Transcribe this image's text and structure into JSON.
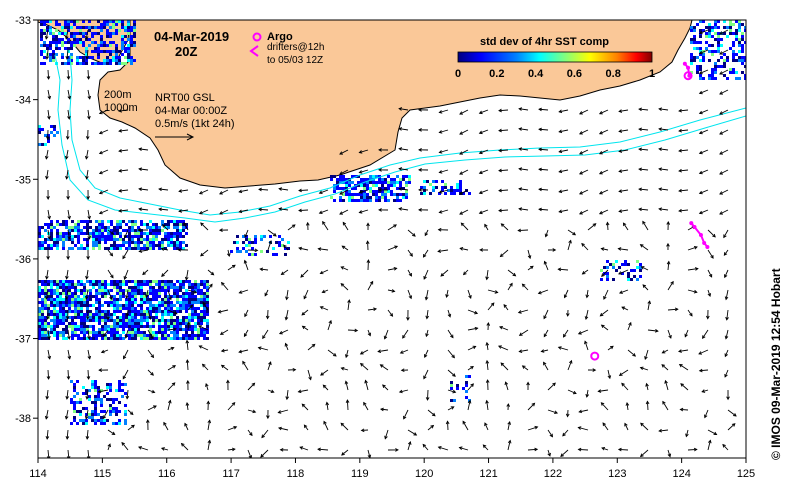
{
  "title": {
    "date": "04-Mar-2019",
    "time": "20Z"
  },
  "legend": {
    "argo_label": "Argo",
    "drifters_line1": "drifters@12h",
    "drifters_line2": "to 05/03 12Z",
    "colorbar_title": "std dev of 4hr SST comp",
    "colorbar_ticks": [
      "0",
      "0.2",
      "0.4",
      "0.6",
      "0.8",
      "1"
    ],
    "colorbar_colors": [
      "#00007f",
      "#0000ff",
      "#0080ff",
      "#00ffff",
      "#80ff80",
      "#ffff00",
      "#ff8000",
      "#ff0000",
      "#7f0000"
    ]
  },
  "isobaths": {
    "label_200": "200m",
    "label_1000": "1000m"
  },
  "product": {
    "line1": "NRT00 GSL",
    "line2": "04-Mar 00:00Z",
    "scale_label": "0.5m/s (1kt 24h)"
  },
  "axes": {
    "x_ticks": [
      "114",
      "115",
      "116",
      "117",
      "118",
      "119",
      "120",
      "121",
      "122",
      "123",
      "124",
      "125"
    ],
    "y_ticks": [
      "-33",
      "-34",
      "-35",
      "-36",
      "-37",
      "-38"
    ],
    "lon_range": [
      114,
      125
    ],
    "lat_range": [
      -38.5,
      -33
    ]
  },
  "credit": "© IMOS 09-Mar-2019 12:54 Hobart",
  "colors": {
    "land": "#fac898",
    "coast": "#000000",
    "isobath": "#00e5ee",
    "argo": "#ff00ff",
    "arrow": "#000000"
  },
  "argo_floats": [
    {
      "lon": 122.65,
      "lat": -37.22
    },
    {
      "lon": 124.1,
      "lat": -33.7
    }
  ],
  "drifter_tracks": [
    [
      [
        124.15,
        -35.55
      ],
      [
        124.2,
        -35.6
      ],
      [
        124.3,
        -35.7
      ],
      [
        124.35,
        -35.8
      ],
      [
        124.4,
        -35.85
      ]
    ],
    [
      [
        124.05,
        -33.55
      ],
      [
        124.1,
        -33.6
      ],
      [
        124.12,
        -33.7
      ]
    ]
  ]
}
